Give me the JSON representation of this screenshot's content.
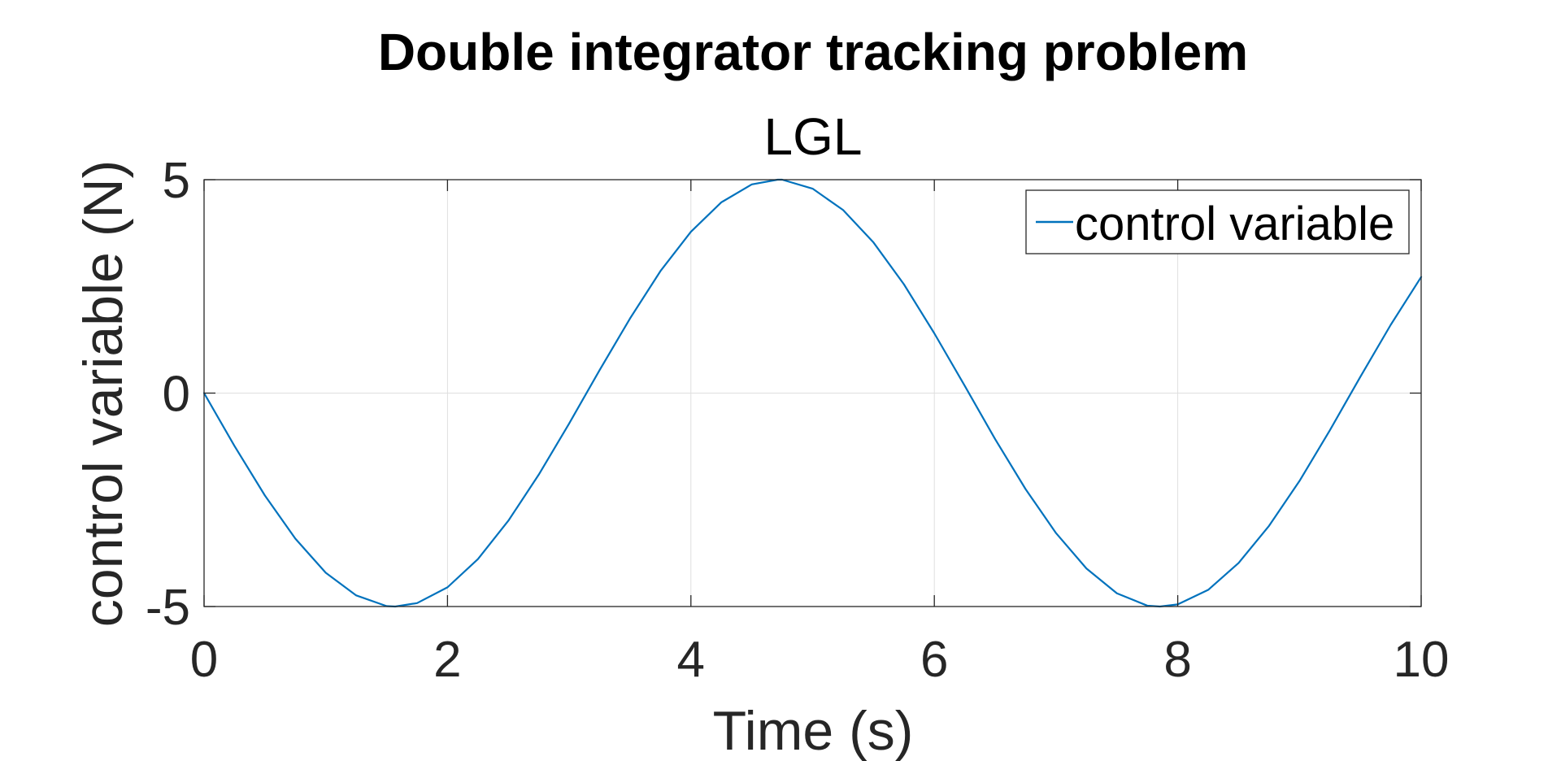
{
  "chart_data": {
    "type": "line",
    "title": "Double integrator tracking problem",
    "subtitle": "LGL",
    "xlabel": "Time (s)",
    "ylabel": "control variable (N)",
    "xlim": [
      0,
      10
    ],
    "ylim": [
      -5,
      5
    ],
    "xticks": [
      0,
      2,
      4,
      6,
      8,
      10
    ],
    "yticks": [
      -5,
      0,
      5
    ],
    "xtick_labels": [
      "0",
      "2",
      "4",
      "6",
      "8",
      "10"
    ],
    "ytick_labels": [
      "-5",
      "0",
      "5"
    ],
    "grid": true,
    "legend_position": "top-right",
    "series": [
      {
        "name": "control variable",
        "color": "#0072BD",
        "x": [
          0,
          0.25,
          0.5,
          0.75,
          1,
          1.25,
          1.5,
          1.571,
          1.75,
          2,
          2.25,
          2.5,
          2.75,
          3,
          3.25,
          3.5,
          3.75,
          4,
          4.25,
          4.5,
          4.712,
          4.75,
          5,
          5.25,
          5.5,
          5.75,
          6,
          6.25,
          6.5,
          6.75,
          7,
          7.25,
          7.5,
          7.75,
          7.854,
          8,
          8.25,
          8.5,
          8.75,
          9,
          9.25,
          9.5,
          9.75,
          10
        ],
        "y": [
          0,
          -1.24,
          -2.4,
          -3.41,
          -4.21,
          -4.74,
          -4.99,
          -5,
          -4.92,
          -4.55,
          -3.89,
          -2.99,
          -1.91,
          -0.71,
          0.54,
          1.75,
          2.86,
          3.78,
          4.47,
          4.89,
          5,
          5,
          4.79,
          4.29,
          3.53,
          2.55,
          1.4,
          0.17,
          -1.08,
          -2.25,
          -3.28,
          -4.11,
          -4.69,
          -4.98,
          -5,
          -4.95,
          -4.61,
          -3.98,
          -3.11,
          -2.06,
          -0.87,
          0.38,
          1.6,
          2.72
        ]
      }
    ]
  }
}
